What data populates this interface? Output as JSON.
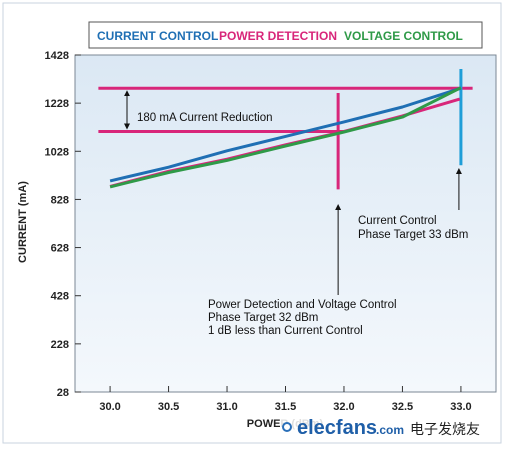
{
  "chart_data": {
    "type": "line",
    "xlabel": "POWER (dBm)",
    "ylabel": "CURRENT (mA)",
    "x_ticks": [
      "30.0",
      "30.5",
      "31.0",
      "31.5",
      "32.0",
      "32.5",
      "33.0"
    ],
    "y_ticks": [
      "28",
      "228",
      "428",
      "628",
      "828",
      "1028",
      "1228",
      "1428"
    ],
    "xlim": [
      29.7,
      33.3
    ],
    "ylim": [
      28,
      1428
    ],
    "grid": false,
    "legend_position": "top",
    "series": [
      {
        "name": "CURRENT CONTROL",
        "color": "#1f6fb4",
        "x": [
          30.0,
          30.5,
          31.0,
          31.5,
          32.0,
          32.5,
          33.0
        ],
        "y": [
          905,
          962,
          1030,
          1090,
          1150,
          1212,
          1290
        ]
      },
      {
        "name": "POWER DETECTION",
        "color": "#d8267a",
        "x": [
          30.0,
          30.5,
          31.0,
          31.5,
          32.0,
          32.5,
          32.99
        ],
        "y": [
          882,
          945,
          995,
          1055,
          1110,
          1175,
          1245
        ]
      },
      {
        "name": "VOLTAGE CONTROL",
        "color": "#2f9a48",
        "x": [
          30.0,
          30.5,
          31.0,
          31.5,
          32.0,
          32.5,
          33.0
        ],
        "y": [
          880,
          940,
          990,
          1050,
          1108,
          1170,
          1292
        ]
      }
    ],
    "reference_lines": [
      {
        "kind": "horizontal",
        "y": 1290,
        "x_from": 29.9,
        "x_to": 33.1,
        "color": "#d8267a"
      },
      {
        "kind": "horizontal",
        "y": 1110,
        "x_from": 29.9,
        "x_to": 32.0,
        "color": "#d8267a"
      },
      {
        "kind": "vertical",
        "x": 31.95,
        "y_from": 870,
        "y_to": 1270,
        "color": "#d8267a"
      },
      {
        "kind": "vertical",
        "x": 33.0,
        "y_from": 970,
        "y_to": 1370,
        "color": "#1f9ed8"
      }
    ],
    "annotations": [
      {
        "id": "reduction",
        "lines": [
          "180 mA Current Reduction"
        ]
      },
      {
        "id": "current-control",
        "lines": [
          "Current Control",
          "Phase Target 33 dBm"
        ]
      },
      {
        "id": "power-detection",
        "lines": [
          "Power Detection and Voltage Control",
          "Phase Target 32 dBm",
          "1 dB less than Current Control"
        ]
      }
    ]
  },
  "watermark": {
    "brand": "elecfans",
    "domain": ".com",
    "cn": "电子发烧友"
  }
}
